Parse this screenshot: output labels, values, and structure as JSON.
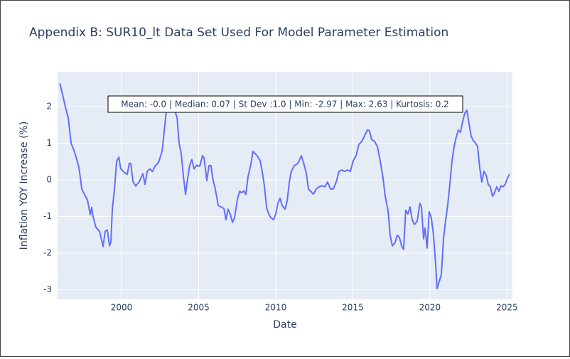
{
  "chart_data": {
    "type": "line",
    "title": "Appendix B: SUR10_lt Data Set Used For Model Parameter Estimation",
    "xlabel": "Date",
    "ylabel": "Inflation YOY Increase (%)",
    "annotation": "Mean: -0.0 | Median: 0.07 | St Dev :1.0 | Min: -2.97 | Max: 2.63 | Kurtosis: 0.2",
    "color": "#636efa",
    "grid": true,
    "xlim": [
      1995.85,
      2025.35
    ],
    "ylim": [
      -3.26,
      2.95
    ],
    "xticks": [
      2000,
      2005,
      2010,
      2015,
      2020,
      2025
    ],
    "yticks": [
      -3,
      -2,
      -1,
      0,
      1,
      2
    ],
    "x": [
      1996.0,
      1996.13,
      1996.4,
      1996.54,
      1996.73,
      1996.87,
      1997.0,
      1997.24,
      1997.42,
      1997.6,
      1997.79,
      1997.97,
      1998.06,
      1998.15,
      1998.34,
      1998.57,
      1998.8,
      1998.94,
      1999.08,
      1999.22,
      1999.31,
      1999.4,
      1999.54,
      1999.68,
      1999.82,
      1999.95,
      2000.18,
      2000.37,
      2000.5,
      2000.6,
      2000.74,
      2000.92,
      2001.15,
      2001.38,
      2001.52,
      2001.66,
      2001.84,
      2002.0,
      2002.17,
      2002.4,
      2002.63,
      2002.76,
      2002.9,
      2003.04,
      2003.23,
      2003.46,
      2003.6,
      2003.73,
      2003.87,
      2004.0,
      2004.15,
      2004.29,
      2004.42,
      2004.56,
      2004.7,
      2004.88,
      2005.07,
      2005.25,
      2005.35,
      2005.53,
      2005.67,
      2005.8,
      2005.94,
      2006.08,
      2006.27,
      2006.45,
      2006.64,
      2006.77,
      2006.91,
      2007.05,
      2007.19,
      2007.33,
      2007.51,
      2007.65,
      2007.79,
      2007.93,
      2008.06,
      2008.2,
      2008.39,
      2008.52,
      2008.66,
      2008.85,
      2008.99,
      2009.12,
      2009.26,
      2009.4,
      2009.54,
      2009.68,
      2009.86,
      2010.0,
      2010.14,
      2010.28,
      2010.41,
      2010.6,
      2010.74,
      2010.88,
      2011.01,
      2011.2,
      2011.38,
      2011.52,
      2011.66,
      2011.8,
      2011.98,
      2012.12,
      2012.26,
      2012.44,
      2012.63,
      2012.81,
      2012.99,
      2013.18,
      2013.36,
      2013.55,
      2013.73,
      2013.92,
      2014.1,
      2014.29,
      2014.47,
      2014.65,
      2014.84,
      2015.02,
      2015.21,
      2015.39,
      2015.58,
      2015.76,
      2015.94,
      2016.08,
      2016.22,
      2016.41,
      2016.59,
      2016.77,
      2016.96,
      2017.1,
      2017.28,
      2017.42,
      2017.56,
      2017.74,
      2017.88,
      2018.02,
      2018.16,
      2018.29,
      2018.43,
      2018.57,
      2018.71,
      2018.85,
      2018.99,
      2019.17,
      2019.35,
      2019.45,
      2019.59,
      2019.68,
      2019.82,
      2019.95,
      2020.09,
      2020.23,
      2020.37,
      2020.46,
      2020.6,
      2020.74,
      2020.88,
      2021.01,
      2021.15,
      2021.29,
      2021.43,
      2021.57,
      2021.7,
      2021.84,
      2021.98,
      2022.12,
      2022.26,
      2022.4,
      2022.53,
      2022.67,
      2022.81,
      2022.95,
      2023.09,
      2023.23,
      2023.36,
      2023.5,
      2023.64,
      2023.78,
      2023.92,
      2024.06,
      2024.19,
      2024.33,
      2024.47,
      2024.61,
      2024.75,
      2024.88,
      2025.02,
      2025.16
    ],
    "values": [
      2.63,
      2.4,
      1.92,
      1.7,
      1.0,
      0.85,
      0.7,
      0.33,
      -0.25,
      -0.4,
      -0.55,
      -0.95,
      -0.75,
      -1.0,
      -1.3,
      -1.4,
      -1.82,
      -1.4,
      -1.37,
      -1.8,
      -1.7,
      -0.8,
      -0.25,
      0.5,
      0.62,
      0.3,
      0.2,
      0.15,
      0.45,
      0.45,
      -0.05,
      -0.17,
      -0.05,
      0.17,
      -0.12,
      0.23,
      0.3,
      0.23,
      0.37,
      0.48,
      0.78,
      1.3,
      1.88,
      2.08,
      1.98,
      1.88,
      1.7,
      1.0,
      0.72,
      0.14,
      -0.4,
      0.05,
      0.4,
      0.55,
      0.3,
      0.4,
      0.37,
      0.66,
      0.6,
      -0.02,
      0.39,
      0.39,
      -0.02,
      -0.25,
      -0.7,
      -0.74,
      -0.78,
      -1.09,
      -0.8,
      -0.93,
      -1.16,
      -1.03,
      -0.54,
      -0.31,
      -0.35,
      -0.3,
      -0.4,
      0.08,
      0.43,
      0.78,
      0.72,
      0.62,
      0.52,
      0.23,
      -0.16,
      -0.74,
      -0.93,
      -1.03,
      -1.09,
      -0.93,
      -0.64,
      -0.5,
      -0.7,
      -0.8,
      -0.58,
      -0.06,
      0.23,
      0.39,
      0.43,
      0.52,
      0.66,
      0.47,
      0.19,
      -0.25,
      -0.31,
      -0.39,
      -0.25,
      -0.19,
      -0.16,
      -0.19,
      -0.06,
      -0.25,
      -0.25,
      -0.06,
      0.23,
      0.27,
      0.23,
      0.27,
      0.23,
      0.52,
      0.66,
      0.97,
      1.05,
      1.2,
      1.36,
      1.34,
      1.1,
      1.05,
      0.91,
      0.52,
      0.04,
      -0.45,
      -0.83,
      -1.51,
      -1.8,
      -1.71,
      -1.51,
      -1.57,
      -1.8,
      -1.9,
      -0.83,
      -0.93,
      -0.74,
      -1.09,
      -1.22,
      -1.13,
      -0.64,
      -0.74,
      -1.61,
      -1.32,
      -1.86,
      -0.87,
      -1.03,
      -1.51,
      -2.29,
      -2.97,
      -2.78,
      -2.58,
      -1.61,
      -1.13,
      -0.7,
      -0.12,
      0.52,
      0.91,
      1.16,
      1.36,
      1.3,
      1.59,
      1.82,
      1.9,
      1.55,
      1.2,
      1.07,
      1.01,
      0.91,
      0.33,
      -0.06,
      0.23,
      0.14,
      -0.12,
      -0.19,
      -0.45,
      -0.35,
      -0.19,
      -0.31,
      -0.16,
      -0.19,
      -0.12,
      0.04,
      0.16
    ]
  }
}
